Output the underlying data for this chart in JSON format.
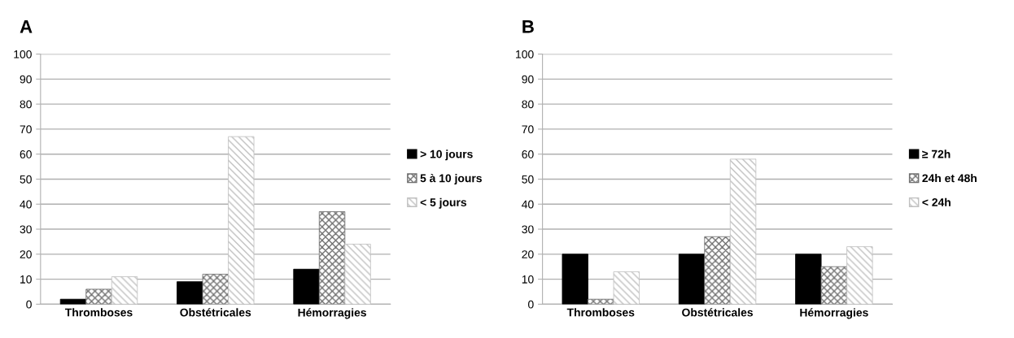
{
  "chart_data": [
    {
      "type": "bar",
      "title": "A",
      "categories": [
        "Thromboses",
        "Obstétricales",
        "Hémorragies"
      ],
      "series": [
        {
          "name": "> 10 jours",
          "color": "#000000",
          "values": [
            2,
            9,
            14
          ]
        },
        {
          "name": "5 à 10 jours",
          "color": "#707070",
          "values": [
            6,
            12,
            37
          ]
        },
        {
          "name": "< 5 jours",
          "color": "#c0c0c0",
          "values": [
            11,
            67,
            24
          ]
        }
      ],
      "ylim": [
        0,
        100
      ],
      "yticks": [
        0,
        10,
        20,
        30,
        40,
        50,
        60,
        70,
        80,
        90,
        100
      ],
      "grid": "y",
      "legend": "right"
    },
    {
      "type": "bar",
      "title": "B",
      "categories": [
        "Thromboses",
        "Obstétricales",
        "Hémorragies"
      ],
      "series": [
        {
          "name": "≥ 72h",
          "color": "#000000",
          "values": [
            20,
            20,
            20
          ]
        },
        {
          "name": "24h et 48h",
          "color": "#707070",
          "values": [
            2,
            27,
            15
          ]
        },
        {
          "name": "< 24h",
          "color": "#c0c0c0",
          "values": [
            13,
            58,
            23
          ]
        }
      ],
      "ylim": [
        0,
        100
      ],
      "yticks": [
        0,
        10,
        20,
        30,
        40,
        50,
        60,
        70,
        80,
        90,
        100
      ],
      "grid": "y",
      "legend": "right"
    }
  ]
}
